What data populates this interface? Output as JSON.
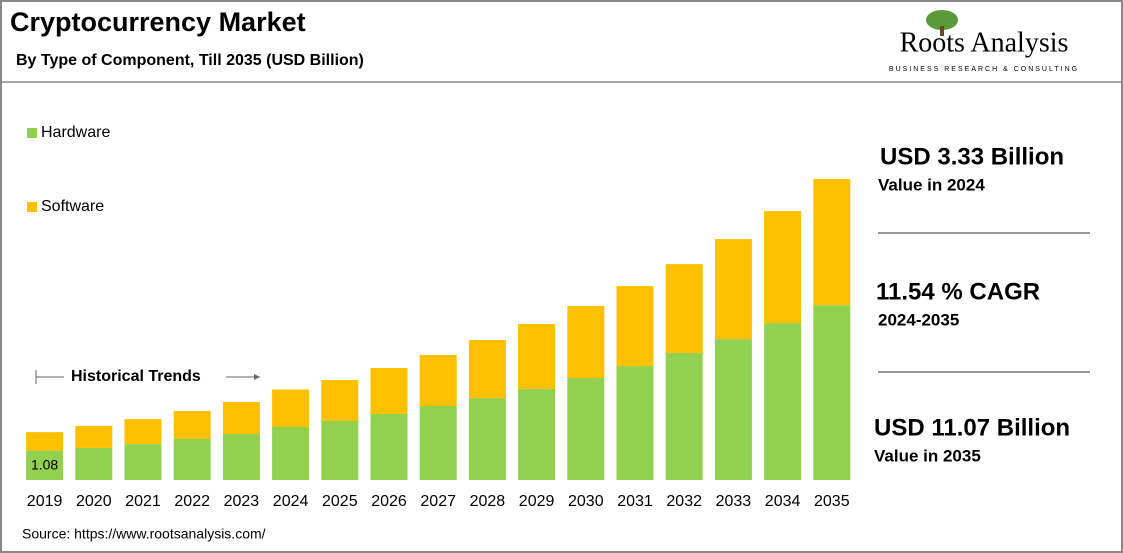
{
  "chart_data": {
    "type": "bar",
    "stacked": true,
    "title": "Cryptocurrency Market",
    "subtitle": "By Type of Component, Till 2035 (USD Billion)",
    "logo": {
      "name": "Roots Analysis",
      "tagline": "BUSINESS RESEARCH & CONSULTING"
    },
    "annotation": "Historical Trends",
    "source": "Source: https://www.rootsanalysis.com/",
    "categories": [
      "2019",
      "2020",
      "2021",
      "2022",
      "2023",
      "2024",
      "2025",
      "2026",
      "2027",
      "2028",
      "2029",
      "2030",
      "2031",
      "2032",
      "2033",
      "2034",
      "2035"
    ],
    "series": [
      {
        "name": "Hardware",
        "color": "#92d050",
        "values": [
          1.08,
          1.18,
          1.32,
          1.51,
          1.69,
          1.95,
          2.17,
          2.43,
          2.72,
          3.01,
          3.35,
          3.75,
          4.19,
          4.67,
          5.18,
          5.77,
          6.43
        ],
        "value_labels": [
          "1.08",
          null,
          null,
          null,
          null,
          null,
          null,
          null,
          null,
          null,
          null,
          null,
          null,
          null,
          null,
          null,
          null
        ]
      },
      {
        "name": "Software",
        "color": "#ffc000",
        "values": [
          0.68,
          0.81,
          0.92,
          1.03,
          1.18,
          1.38,
          1.51,
          1.69,
          1.88,
          2.14,
          2.39,
          2.65,
          2.94,
          3.27,
          3.68,
          4.12,
          4.64
        ]
      }
    ],
    "stats": [
      {
        "value": "USD 3.33 Billion",
        "label": "Value in 2024"
      },
      {
        "value": "11.54 % CAGR",
        "label": "2024-2035"
      },
      {
        "value": "USD 11.07 Billion",
        "label": "Value in 2035"
      }
    ]
  }
}
